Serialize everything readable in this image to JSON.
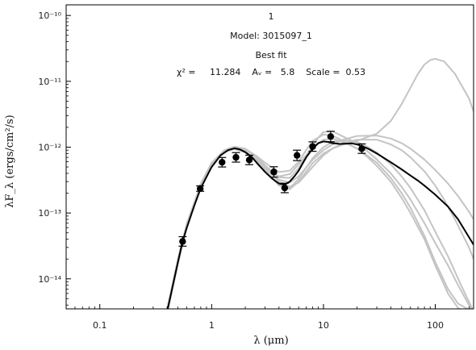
{
  "chart_data": {
    "type": "scatter",
    "xscale": "log",
    "yscale": "log",
    "xlim": [
      0.05,
      220
    ],
    "ylim": [
      3.5e-15,
      1.45e-10
    ],
    "xlabel": "λ (μm)",
    "ylabel": "λF_λ (ergs/cm²/s)",
    "x_tick_labels": [
      "0.1",
      "1",
      "10",
      "100"
    ],
    "y_tick_labels": [
      "10⁻¹⁴",
      "10⁻¹³",
      "10⁻¹²",
      "10⁻¹¹",
      "10⁻¹⁰"
    ],
    "annotations": {
      "line1": "1",
      "line2": "Model: 3015097_1",
      "line3": "Best fit",
      "line4": "χ² =     11.284    Aᵥ =   5.8    Scale =  0.53"
    },
    "grid": false,
    "colors": {
      "best_fit": "#000000",
      "other_models": "#c4c4c4",
      "points": "#000000"
    },
    "points": {
      "x": [
        0.55,
        0.79,
        1.24,
        1.65,
        2.17,
        3.6,
        4.5,
        5.8,
        8.0,
        11.6,
        22.0
      ],
      "y": [
        3.7e-14,
        2.35e-13,
        5.9e-13,
        7e-13,
        6.4e-13,
        4.2e-13,
        2.4e-13,
        7.5e-13,
        1.02e-12,
        1.45e-12,
        9.5e-13
      ],
      "yerr_factor": [
        1.18,
        1.1,
        1.18,
        1.18,
        1.18,
        1.2,
        1.18,
        1.2,
        1.18,
        1.2,
        1.18
      ]
    },
    "series": [
      {
        "role": "best_fit",
        "x": [
          0.4,
          0.45,
          0.5,
          0.55,
          0.6,
          0.7,
          0.8,
          1.0,
          1.2,
          1.4,
          1.6,
          1.8,
          2.0,
          2.3,
          2.6,
          3.0,
          3.5,
          4.0,
          4.5,
          5.0,
          5.5,
          6.0,
          6.5,
          7.0,
          8.0,
          9.0,
          10.0,
          11.0,
          12.0,
          14.0,
          16.0,
          18.0,
          20.0,
          25.0,
          30.0,
          40.0,
          50.0,
          60.0,
          70.0,
          80.0,
          100.0,
          130.0,
          160.0,
          200.0,
          220.0
        ],
        "y": [
          3.2e-15,
          8e-15,
          1.8e-14,
          3.7e-14,
          6e-14,
          1.3e-13,
          2.4e-13,
          5e-13,
          7.5e-13,
          9e-13,
          9.6e-13,
          9.2e-13,
          8.4e-13,
          7e-13,
          5.5e-13,
          4.2e-13,
          3.3e-13,
          2.8e-13,
          2.7e-13,
          3e-13,
          3.6e-13,
          4.4e-13,
          5.6e-13,
          7e-13,
          9.5e-13,
          1.15e-12,
          1.22e-12,
          1.2e-12,
          1.15e-12,
          1.12e-12,
          1.13e-12,
          1.14e-12,
          1.1e-12,
          9.5e-13,
          8e-13,
          5.9e-13,
          4.6e-13,
          3.7e-13,
          3.1e-13,
          2.6e-13,
          1.9e-13,
          1.25e-13,
          8e-14,
          4.3e-14,
          3.3e-14
        ]
      },
      {
        "role": "model",
        "x": [
          0.4,
          0.5,
          0.6,
          0.8,
          1.0,
          1.3,
          1.6,
          2.0,
          2.5,
          3.0,
          4.0,
          5.0,
          6.0,
          8.0,
          10.0,
          12.0,
          15.0,
          20.0,
          30.0,
          40.0,
          50.0,
          60.0,
          70.0,
          80.0,
          90.0,
          100.0,
          120.0,
          150.0,
          200.0,
          220.0
        ],
        "y": [
          3.5e-15,
          2e-14,
          7e-14,
          2.7e-13,
          5.7e-13,
          8.8e-13,
          9.8e-13,
          8.7e-13,
          6.4e-13,
          4.5e-13,
          2.7e-13,
          2.3e-13,
          3e-13,
          5.7e-13,
          8e-13,
          9.5e-13,
          1.1e-12,
          1.25e-12,
          1.6e-12,
          2.5e-12,
          4.5e-12,
          8e-12,
          1.3e-11,
          1.8e-11,
          2.1e-11,
          2.2e-11,
          2e-11,
          1.3e-11,
          5.5e-12,
          3.5e-12
        ]
      },
      {
        "role": "model",
        "x": [
          0.4,
          0.5,
          0.6,
          0.8,
          1.0,
          1.3,
          1.6,
          2.0,
          2.5,
          3.0,
          4.0,
          5.0,
          6.0,
          8.0,
          10.0,
          12.0,
          15.0,
          20.0,
          30.0,
          40.0,
          50.0,
          60.0,
          80.0,
          100.0,
          130.0,
          160.0,
          200.0,
          220.0
        ],
        "y": [
          3.2e-15,
          1.8e-14,
          6.5e-14,
          2.6e-13,
          5.5e-13,
          8.5e-13,
          9.5e-13,
          8.5e-13,
          6.5e-13,
          5e-13,
          3.2e-13,
          2.9e-13,
          3.6e-13,
          6.4e-13,
          9e-13,
          1.1e-12,
          1.3e-12,
          1.48e-12,
          1.5e-12,
          1.35e-12,
          1.15e-12,
          9.5e-13,
          6.5e-13,
          4.5e-13,
          2.8e-13,
          1.8e-13,
          1.05e-13,
          8e-14
        ]
      },
      {
        "role": "model",
        "x": [
          0.4,
          0.5,
          0.6,
          0.8,
          1.0,
          1.3,
          1.6,
          2.0,
          2.5,
          3.0,
          4.0,
          5.0,
          6.0,
          7.0,
          8.0,
          9.0,
          10.0,
          12.0,
          15.0,
          20.0,
          25.0,
          30.0,
          40.0,
          50.0,
          60.0,
          80.0,
          100.0,
          130.0,
          160.0,
          200.0,
          220.0
        ],
        "y": [
          3.5e-15,
          2e-14,
          6.8e-14,
          2.8e-13,
          5.8e-13,
          9e-13,
          1.02e-12,
          9.5e-13,
          7.2e-13,
          5.3e-13,
          3.5e-13,
          3.4e-13,
          4.8e-13,
          7.5e-13,
          1.05e-12,
          1.4e-12,
          1.7e-12,
          1.75e-12,
          1.45e-12,
          1.15e-12,
          8.5e-13,
          6.5e-13,
          4e-13,
          2.5e-13,
          1.6e-13,
          7e-14,
          3.5e-14,
          1.6e-14,
          8e-15,
          4e-15,
          3e-15
        ]
      },
      {
        "role": "model",
        "x": [
          0.4,
          0.5,
          0.6,
          0.8,
          1.0,
          1.3,
          1.6,
          2.0,
          2.5,
          3.0,
          4.0,
          5.0,
          6.0,
          8.0,
          10.0,
          12.0,
          15.0,
          20.0,
          30.0,
          40.0,
          50.0,
          60.0,
          80.0,
          100.0,
          120.0,
          150.0,
          200.0,
          220.0
        ],
        "y": [
          3e-15,
          1.7e-14,
          6.2e-14,
          2.5e-13,
          5.4e-13,
          8.4e-13,
          9.4e-13,
          8.6e-13,
          6.7e-13,
          5e-13,
          3e-13,
          2.5e-13,
          2.9e-13,
          5e-13,
          7.5e-13,
          9.5e-13,
          1.15e-12,
          1.3e-12,
          1.3e-12,
          1.1e-12,
          9e-13,
          7e-13,
          4.3e-13,
          2.6e-13,
          1.6e-13,
          8e-14,
          3e-14,
          2e-14
        ]
      },
      {
        "role": "model",
        "x": [
          0.4,
          0.5,
          0.6,
          0.8,
          1.0,
          1.3,
          1.6,
          2.0,
          2.5,
          3.0,
          4.0,
          5.0,
          6.0,
          7.0,
          8.0,
          10.0,
          12.0,
          15.0,
          20.0,
          25.0,
          30.0,
          40.0,
          50.0,
          60.0,
          80.0,
          100.0,
          130.0,
          160.0,
          200.0
        ],
        "y": [
          3.4e-15,
          1.9e-14,
          6.6e-14,
          2.7e-13,
          5.7e-13,
          8.9e-13,
          1e-12,
          9.4e-13,
          7.4e-13,
          5.8e-13,
          4.2e-13,
          4.4e-13,
          6e-13,
          9e-13,
          1.25e-12,
          1.55e-12,
          1.5e-12,
          1.25e-12,
          9.5e-13,
          7e-13,
          5.2e-13,
          3e-13,
          1.7e-13,
          1e-13,
          4e-14,
          1.6e-14,
          6e-15,
          3.6e-15,
          3e-15
        ]
      },
      {
        "role": "model",
        "x": [
          0.4,
          0.5,
          0.6,
          0.8,
          1.0,
          1.3,
          1.6,
          2.0,
          2.5,
          3.0,
          4.0,
          5.0,
          6.0,
          8.0,
          10.0,
          12.0,
          15.0,
          20.0,
          25.0,
          30.0,
          40.0,
          50.0,
          60.0,
          80.0,
          100.0,
          130.0,
          170.0,
          220.0
        ],
        "y": [
          3.1e-15,
          1.8e-14,
          6.4e-14,
          2.6e-13,
          5.6e-13,
          8.7e-13,
          9.7e-13,
          8.8e-13,
          6.6e-13,
          4.6e-13,
          2.6e-13,
          2.4e-13,
          3.3e-13,
          6.8e-13,
          1e-12,
          1.2e-12,
          1.28e-12,
          1.2e-12,
          1e-12,
          8.3e-13,
          5.5e-13,
          3.6e-13,
          2.4e-13,
          1.1e-13,
          5.2e-14,
          2.2e-14,
          8e-15,
          3.2e-15
        ]
      },
      {
        "role": "model",
        "x": [
          0.4,
          0.5,
          0.6,
          0.8,
          1.0,
          1.3,
          1.6,
          2.0,
          2.5,
          3.0,
          4.0,
          5.0,
          6.0,
          8.0,
          10.0,
          12.0,
          15.0,
          20.0,
          25.0,
          30.0,
          40.0,
          50.0,
          60.0,
          80.0,
          100.0,
          130.0,
          160.0,
          200.0
        ],
        "y": [
          3.3e-15,
          1.9e-14,
          6.7e-14,
          2.7e-13,
          5.6e-13,
          8.6e-13,
          9.4e-13,
          8.3e-13,
          6.2e-13,
          4.8e-13,
          3.6e-13,
          3.9e-13,
          5.5e-13,
          1e-12,
          1.3e-12,
          1.35e-12,
          1.2e-12,
          9.5e-13,
          7.3e-13,
          5.8e-13,
          3.4e-13,
          2e-13,
          1.2e-13,
          4.5e-14,
          1.8e-14,
          7e-15,
          4.2e-15,
          3.4e-15
        ]
      }
    ]
  }
}
